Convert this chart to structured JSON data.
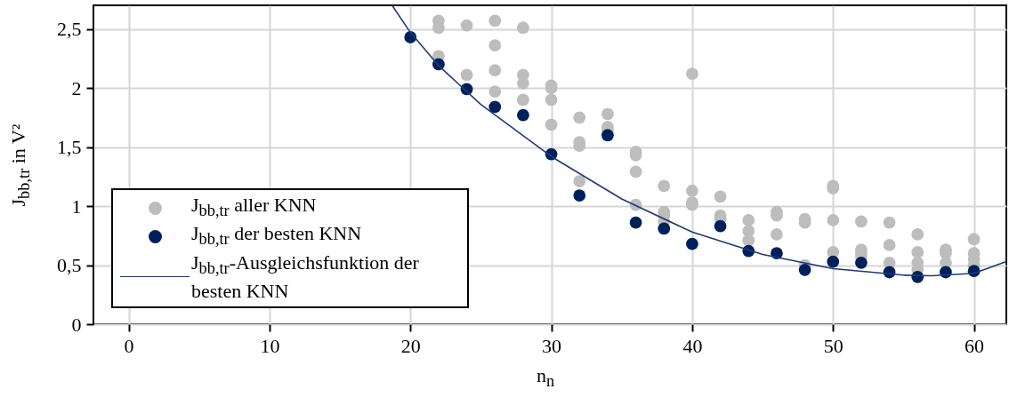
{
  "chart_data": {
    "type": "scatter",
    "xlabel": "n$_{n}$",
    "ylabel": "J$_{bb,tr}$ in V²",
    "xlim": [
      -2.5,
      62.3
    ],
    "ylim": [
      0,
      2.7
    ],
    "xticks": [
      0,
      10,
      20,
      30,
      40,
      50,
      60
    ],
    "yticks": [
      0,
      {
        "value": 0.5,
        "label": "0,5"
      },
      1,
      {
        "value": 1.5,
        "label": "1,5"
      },
      2,
      {
        "value": 2.5,
        "label": "2,5"
      }
    ],
    "grid": true,
    "legend": "bottom left",
    "series": [
      {
        "name": "J$_{bb,tr}$ aller KNN",
        "marker": "circle",
        "color": "#bdbdbd",
        "x": [
          22,
          22,
          22,
          24,
          24,
          26,
          26,
          26,
          26,
          28,
          28,
          28,
          28,
          30,
          30,
          30,
          30,
          32,
          32,
          32,
          32,
          34,
          34,
          34,
          36,
          36,
          36,
          36,
          38,
          38,
          38,
          38,
          40,
          40,
          40,
          40,
          42,
          42,
          42,
          44,
          44,
          44,
          46,
          46,
          46,
          48,
          48,
          48,
          50,
          50,
          50,
          50,
          52,
          52,
          52,
          52,
          54,
          54,
          54,
          56,
          56,
          56,
          56,
          58,
          58,
          58,
          60,
          60,
          60,
          60
        ],
        "values": [
          2.57,
          2.51,
          2.27,
          2.53,
          2.11,
          2.57,
          2.36,
          2.15,
          1.97,
          2.51,
          2.11,
          2.04,
          1.9,
          2.02,
          2.0,
          1.9,
          1.69,
          1.75,
          1.54,
          1.51,
          1.21,
          1.78,
          1.67,
          1.64,
          1.46,
          1.43,
          1.29,
          1.01,
          1.17,
          0.95,
          0.92,
          0.87,
          2.12,
          1.13,
          1.03,
          1.01,
          1.08,
          0.92,
          0.89,
          0.88,
          0.79,
          0.71,
          0.95,
          0.92,
          0.76,
          0.89,
          0.86,
          0.5,
          1.17,
          1.15,
          0.88,
          0.61,
          0.87,
          0.63,
          0.6,
          0.57,
          0.86,
          0.67,
          0.52,
          0.76,
          0.61,
          0.52,
          0.46,
          0.63,
          0.6,
          0.52,
          0.72,
          0.6,
          0.55,
          0.5
        ]
      },
      {
        "name": "J$_{bb,tr}$ der besten KNN",
        "marker": "circle",
        "color": "#00205b",
        "x": [
          20,
          22,
          24,
          26,
          28,
          30,
          32,
          34,
          36,
          38,
          40,
          42,
          44,
          46,
          48,
          50,
          52,
          54,
          56,
          58,
          60
        ],
        "values": [
          2.43,
          2.2,
          1.99,
          1.84,
          1.77,
          1.44,
          1.09,
          1.6,
          0.86,
          0.81,
          0.68,
          0.83,
          0.62,
          0.6,
          0.46,
          0.53,
          0.52,
          0.44,
          0.4,
          0.44,
          0.45
        ]
      },
      {
        "name": "J$_{bb,tr}$-Ausgleichsfunktion der besten KNN",
        "type": "line",
        "color": "#1f3a7a",
        "x": [
          18.7,
          20,
          22,
          25,
          30,
          35,
          40,
          45,
          50,
          55,
          57,
          60,
          62.3
        ],
        "values": [
          2.7,
          2.47,
          2.19,
          1.86,
          1.42,
          1.06,
          0.78,
          0.59,
          0.47,
          0.415,
          0.41,
          0.43,
          0.53
        ]
      }
    ]
  }
}
